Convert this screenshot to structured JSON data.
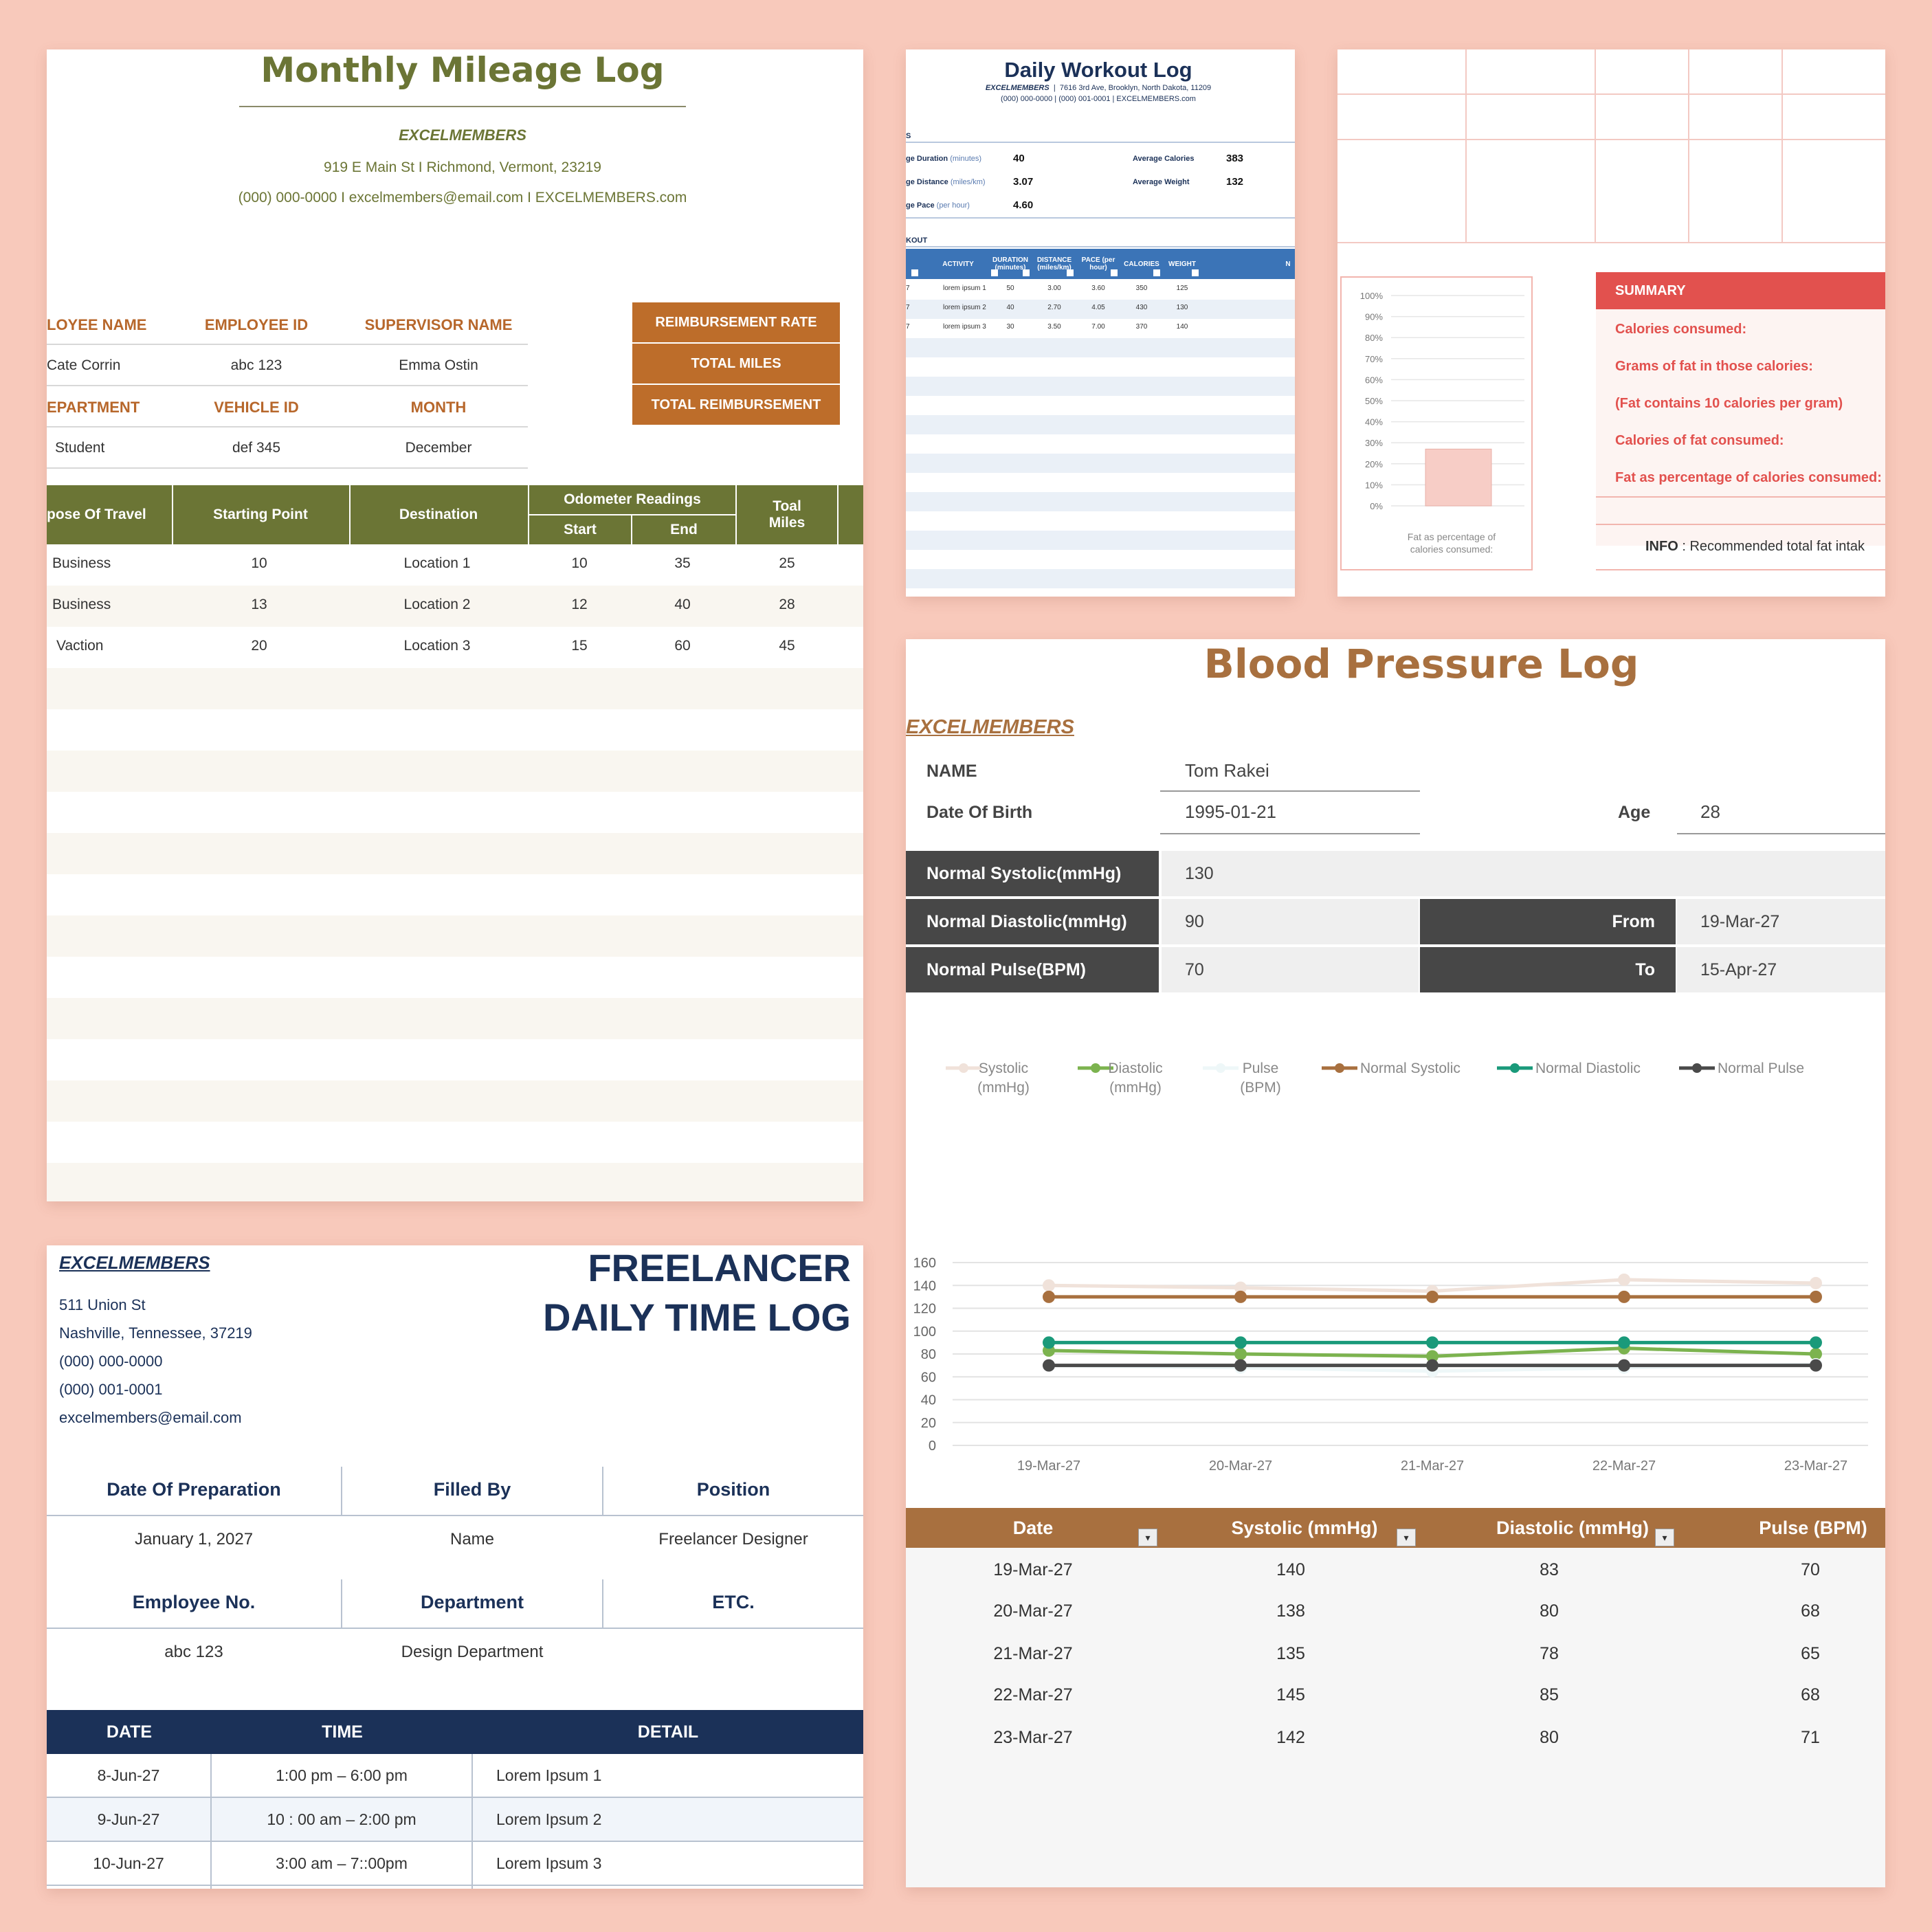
{
  "mileage": {
    "title": "Monthly Mileage Log",
    "company": "EXCELMEMBERS",
    "address": "919 E Main St  I  Richmond, Vermont, 23219",
    "contact": "(000) 000-0000  I  excelmembers@email.com I  EXCELMEMBERS.com",
    "labels": {
      "employee_name": "LOYEE NAME",
      "employee_id": "EMPLOYEE ID",
      "supervisor": "SUPERVISOR NAME",
      "department": "EPARTMENT",
      "vehicle_id": "VEHICLE ID",
      "month": "MONTH"
    },
    "values": {
      "employee_name": "Cate Corrin",
      "employee_id": "abc 123",
      "supervisor": "Emma Ostin",
      "department": "Student",
      "vehicle_id": "def 345",
      "month": "December"
    },
    "summary_labels": [
      "REIMBURSEMENT RATE",
      "TOTAL MILES",
      "TOTAL REIMBURSEMENT"
    ],
    "table_headers": {
      "purpose": "pose Of Travel",
      "start_point": "Starting Point",
      "destination": "Destination",
      "odometer": "Odometer Readings",
      "start": "Start",
      "end": "End",
      "total": "Toal Miles"
    },
    "rows": [
      {
        "purpose": "Business",
        "start_point": "10",
        "destination": "Location 1",
        "start": "10",
        "end": "35",
        "total": "25"
      },
      {
        "purpose": "Business",
        "start_point": "13",
        "destination": "Location 2",
        "start": "12",
        "end": "40",
        "total": "28"
      },
      {
        "purpose": "Vaction",
        "start_point": "20",
        "destination": "Location 3",
        "start": "15",
        "end": "60",
        "total": "45"
      }
    ]
  },
  "workout": {
    "title": "Daily Workout Log",
    "company": "EXCELMEMBERS",
    "address": "7616 3rd Ave, Brooklyn, North Dakota, 11209",
    "contact": "(000) 000-0000  |  (000) 001-0001  |  EXCELMEMBERS.com",
    "section_stats": "S",
    "stats": [
      {
        "label": "ge Duration",
        "unit": "(minutes)",
        "value": "40"
      },
      {
        "label": "ge Distance",
        "unit": "(miles/km)",
        "value": "3.07"
      },
      {
        "label": "ge Pace",
        "unit": "(per hour)",
        "value": "4.60"
      }
    ],
    "stats_right": [
      {
        "label": "Average Calories",
        "value": "383"
      },
      {
        "label": "Average Weight",
        "value": "132"
      }
    ],
    "section_workout": "KOUT",
    "headers": [
      "ACTIVITY",
      "DURATION (minutes)",
      "DISTANCE (miles/km)",
      "PACE (per hour)",
      "CALORIES",
      "WEIGHT",
      "N"
    ],
    "rows": [
      {
        "d": "7",
        "activity": "lorem ipsum 1",
        "duration": "50",
        "distance": "3.00",
        "pace": "3.60",
        "calories": "350",
        "weight": "125"
      },
      {
        "d": "7",
        "activity": "lorem ipsum 2",
        "duration": "40",
        "distance": "2.70",
        "pace": "4.05",
        "calories": "430",
        "weight": "130"
      },
      {
        "d": "7",
        "activity": "lorem ipsum 3",
        "duration": "30",
        "distance": "3.50",
        "pace": "7.00",
        "calories": "370",
        "weight": "140"
      }
    ]
  },
  "nutrition": {
    "summary_title": "SUMMARY",
    "summary_items": [
      "Calories consumed:",
      "Grams of fat in those calories:",
      "(Fat contains 10 calories per gram)",
      "Calories of fat consumed:",
      "Fat as percentage of calories consumed:"
    ],
    "info_label": "INFO",
    "info_text": " : Recommended total fat intak",
    "chart_caption": "Fat as percentage of calories consumed:",
    "ticks": [
      "100%",
      "90%",
      "80%",
      "70%",
      "60%",
      "50%",
      "40%",
      "30%",
      "20%",
      "10%",
      "0%"
    ]
  },
  "blood_pressure": {
    "title": "Blood Pressure Log",
    "company": "EXCELMEMBERS",
    "name_label": "NAME",
    "name_value": "Tom Rakei",
    "dob_label": "Date Of Birth",
    "dob_value": "1995-01-21",
    "age_label": "Age",
    "age_value": "28",
    "normals": [
      {
        "label": "Normal Systolic(mmHg)",
        "value": "130"
      },
      {
        "label": "Normal Diastolic(mmHg)",
        "value": "90"
      },
      {
        "label": "Normal Pulse(BPM)",
        "value": "70"
      }
    ],
    "from_label": "From",
    "from_value": "19-Mar-27",
    "to_label": "To",
    "to_value": "15-Apr-27",
    "table_headers": [
      "Date",
      "Systolic (mmHg)",
      "Diastolic (mmHg)",
      "Pulse (BPM)"
    ],
    "rows": [
      {
        "date": "19-Mar-27",
        "sys": "140",
        "dia": "83",
        "pulse": "70"
      },
      {
        "date": "20-Mar-27",
        "sys": "138",
        "dia": "80",
        "pulse": "68"
      },
      {
        "date": "21-Mar-27",
        "sys": "135",
        "dia": "78",
        "pulse": "65"
      },
      {
        "date": "22-Mar-27",
        "sys": "145",
        "dia": "85",
        "pulse": "68"
      },
      {
        "date": "23-Mar-27",
        "sys": "142",
        "dia": "80",
        "pulse": "71"
      }
    ]
  },
  "freelancer": {
    "company": "EXCELMEMBERS",
    "address_lines": [
      "511 Union St",
      "Nashville, Tennessee, 37219",
      "(000) 000-0000",
      "(000) 001-0001",
      "excelmembers@email.com"
    ],
    "title_line1": "FREELANCER",
    "title_line2": "DAILY TIME LOG",
    "headers1": [
      "Date Of Preparation",
      "Filled By",
      "Position"
    ],
    "values1": [
      "January 1, 2027",
      "Name",
      "Freelancer Designer"
    ],
    "headers2": [
      "Employee No.",
      "Department",
      "ETC."
    ],
    "values2": [
      "abc 123",
      "Design Department",
      ""
    ],
    "table_headers": [
      "DATE",
      "TIME",
      "DETAIL"
    ],
    "rows": [
      {
        "date": "8-Jun-27",
        "time": "1:00 pm – 6:00 pm",
        "detail": "Lorem Ipsum 1"
      },
      {
        "date": "9-Jun-27",
        "time": "10 : 00 am – 2:00 pm",
        "detail": "Lorem Ipsum 2"
      },
      {
        "date": "10-Jun-27",
        "time": "3:00 am – 7::00pm",
        "detail": "Lorem Ipsum 3"
      }
    ]
  },
  "colors": {
    "mileage_green": "#6b7535",
    "mileage_orange": "#bd6d2a",
    "workout_blue": "#3b74b7",
    "nutrition_red": "#e2514e",
    "bp_brown": "#a8703f",
    "freelancer_navy": "#1b3158"
  },
  "chart_data": [
    {
      "type": "line",
      "x": [
        "19-Mar-27",
        "20-Mar-27",
        "21-Mar-27",
        "22-Mar-27",
        "23-Mar-27"
      ],
      "ylim": [
        0,
        160
      ],
      "yticks": [
        0,
        20,
        40,
        60,
        80,
        100,
        120,
        140,
        160
      ],
      "grid": true,
      "legend_position": "top",
      "series": [
        {
          "name": "Systolic (mmHg)",
          "color": "#f0e2da",
          "values": [
            140,
            138,
            135,
            145,
            142
          ]
        },
        {
          "name": "Diastolic (mmHg)",
          "color": "#7cb34f",
          "values": [
            83,
            80,
            78,
            85,
            80
          ]
        },
        {
          "name": "Pulse (BPM)",
          "color": "#eef7f8",
          "values": [
            70,
            68,
            65,
            68,
            71
          ]
        },
        {
          "name": "Normal Systolic",
          "color": "#a8703f",
          "values": [
            130,
            130,
            130,
            130,
            130
          ]
        },
        {
          "name": "Normal Diastolic",
          "color": "#1a9a7a",
          "values": [
            90,
            90,
            90,
            90,
            90
          ]
        },
        {
          "name": "Normal Pulse",
          "color": "#4a4a4a",
          "values": [
            70,
            70,
            70,
            70,
            70
          ]
        }
      ]
    },
    {
      "type": "bar",
      "categories": [
        "Fat as percentage of calories consumed:"
      ],
      "values": [
        27
      ],
      "ylim": [
        0,
        100
      ],
      "grid": true
    }
  ]
}
